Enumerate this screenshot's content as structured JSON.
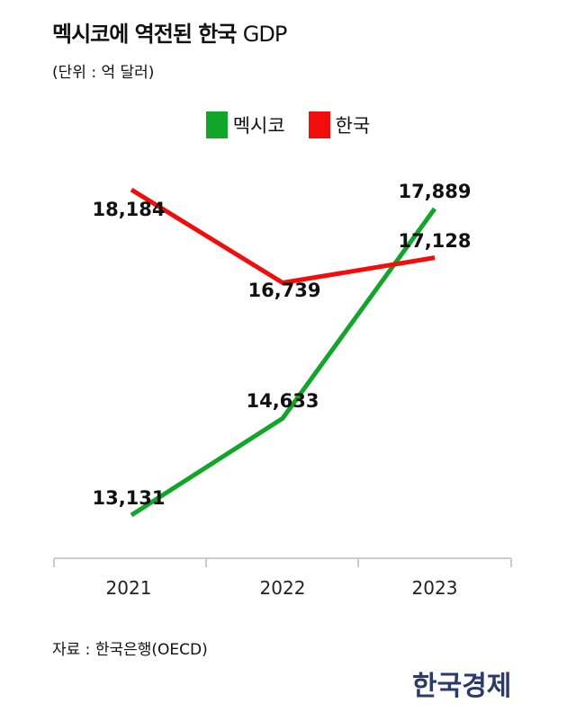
{
  "title_bold": "멕시코에 역전된 한국",
  "title_light": "GDP",
  "unit": "(단위 : 억 달러)",
  "source": "자료 : 한국은행(OECD)",
  "logo": "한국경제",
  "chart_data": {
    "type": "line",
    "title": "멕시코에 역전된 한국 GDP",
    "ylabel": "억 달러",
    "categories": [
      "2021",
      "2022",
      "2023"
    ],
    "series": [
      {
        "name": "멕시코",
        "color": "#11a52a",
        "values": [
          13131,
          14633,
          17889
        ],
        "labels": [
          "13,131",
          "14,633",
          "17,889"
        ]
      },
      {
        "name": "한국",
        "color": "#f20d0d",
        "values": [
          18184,
          16739,
          17128
        ],
        "labels": [
          "18,184",
          "16,739",
          "17,128"
        ]
      }
    ],
    "legend": "top-center",
    "grid": false
  }
}
